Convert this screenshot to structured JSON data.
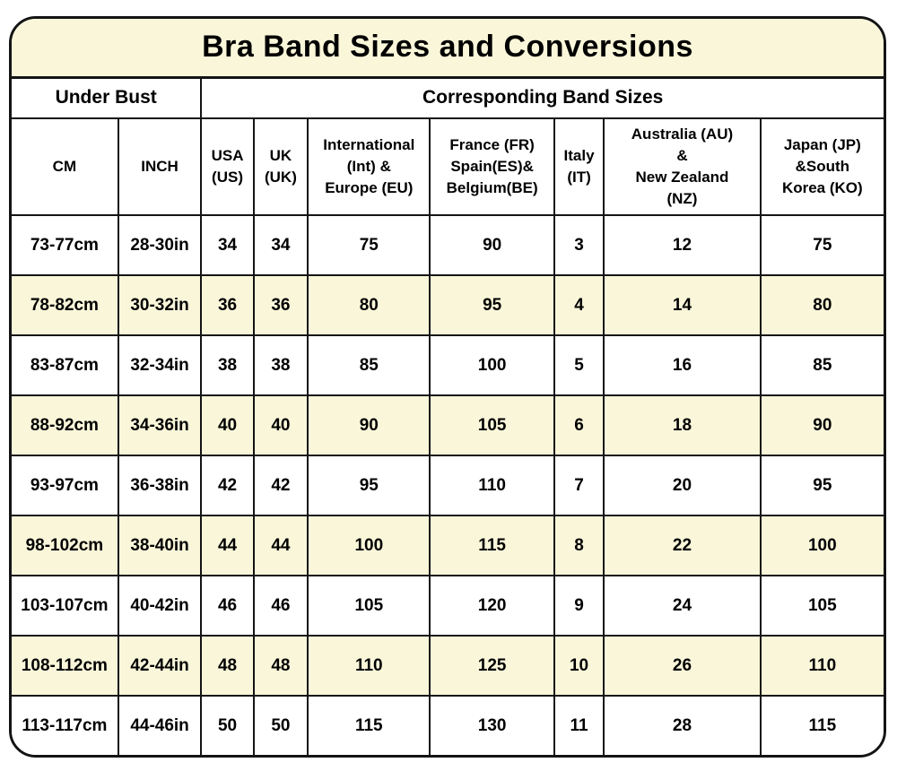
{
  "colors": {
    "stripe_row_bg": "#faf6d9",
    "title_bar_bg": "#faf6d9",
    "border": "#141414",
    "text": "#000000",
    "plain_row_bg": "#ffffff"
  },
  "chart_data": {
    "type": "table",
    "title": "Bra Band Sizes and Conversions",
    "group_headers": [
      {
        "label": "Under Bust",
        "colspan": 2
      },
      {
        "label": "Corresponding Band Sizes",
        "colspan": 7
      }
    ],
    "columns": [
      "CM",
      "INCH",
      "USA (US)",
      "UK (UK)",
      "International (Int) & Europe (EU)",
      "France (FR) Spain(ES)& Belgium(BE)",
      "Italy (IT)",
      "Australia (AU) & New Zealand (NZ)",
      "Japan (JP) &South Korea (KO)"
    ],
    "column_display": [
      "CM",
      "INCH",
      "USA\n(US)",
      "UK\n(UK)",
      "International\n(Int) &\nEurope (EU)",
      "France (FR)\nSpain(ES)&\nBelgium(BE)",
      "Italy\n(IT)",
      "Australia (AU)\n&\nNew Zealand\n(NZ)",
      "Japan (JP)\n&South\nKorea (KO)"
    ],
    "rows": [
      [
        "73-77cm",
        "28-30in",
        "34",
        "34",
        "75",
        "90",
        "3",
        "12",
        "75"
      ],
      [
        "78-82cm",
        "30-32in",
        "36",
        "36",
        "80",
        "95",
        "4",
        "14",
        "80"
      ],
      [
        "83-87cm",
        "32-34in",
        "38",
        "38",
        "85",
        "100",
        "5",
        "16",
        "85"
      ],
      [
        "88-92cm",
        "34-36in",
        "40",
        "40",
        "90",
        "105",
        "6",
        "18",
        "90"
      ],
      [
        "93-97cm",
        "36-38in",
        "42",
        "42",
        "95",
        "110",
        "7",
        "20",
        "95"
      ],
      [
        "98-102cm",
        "38-40in",
        "44",
        "44",
        "100",
        "115",
        "8",
        "22",
        "100"
      ],
      [
        "103-107cm",
        "40-42in",
        "46",
        "46",
        "105",
        "120",
        "9",
        "24",
        "105"
      ],
      [
        "108-112cm",
        "42-44in",
        "48",
        "48",
        "110",
        "125",
        "10",
        "26",
        "110"
      ],
      [
        "113-117cm",
        "44-46in",
        "50",
        "50",
        "115",
        "130",
        "11",
        "28",
        "115"
      ]
    ]
  }
}
